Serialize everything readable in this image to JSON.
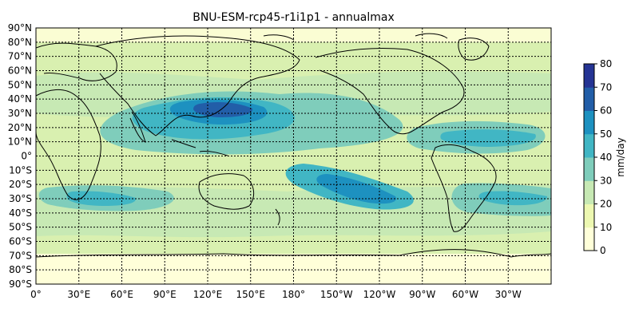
{
  "title": "BNU-ESM-rcp45-r1i1p1 - annualmax",
  "lat_labels": [
    "90°N",
    "80°N",
    "70°N",
    "60°N",
    "50°N",
    "40°N",
    "30°N",
    "20°N",
    "10°N",
    "0°",
    "10°S",
    "20°S",
    "30°S",
    "40°S",
    "50°S",
    "60°S",
    "70°S",
    "80°S",
    "90°S"
  ],
  "lon_labels": [
    "0°",
    "30°E",
    "60°E",
    "90°E",
    "120°E",
    "150°E",
    "180°",
    "150°W",
    "120°W",
    "90°W",
    "60°W",
    "30°W"
  ],
  "colorbar": {
    "label": "mm/day",
    "ticks": [
      "0",
      "10",
      "20",
      "30",
      "40",
      "50",
      "60",
      "70",
      "80"
    ],
    "colors": [
      "#ffffd9",
      "#edf8b1",
      "#c7e9b4",
      "#7fcdbb",
      "#41b6c4",
      "#1d91c0",
      "#225ea8",
      "#253494",
      "#081d58"
    ]
  },
  "map_layers": {
    "band_colors": [
      "#edf8b1",
      "#c7e9b4",
      "#7fcdbb",
      "#41b6c4",
      "#1d91c0",
      "#225ea8"
    ],
    "ocean_base": "#d9f0b0",
    "coastline_color": "#000000",
    "gridline_style": "dotted"
  }
}
